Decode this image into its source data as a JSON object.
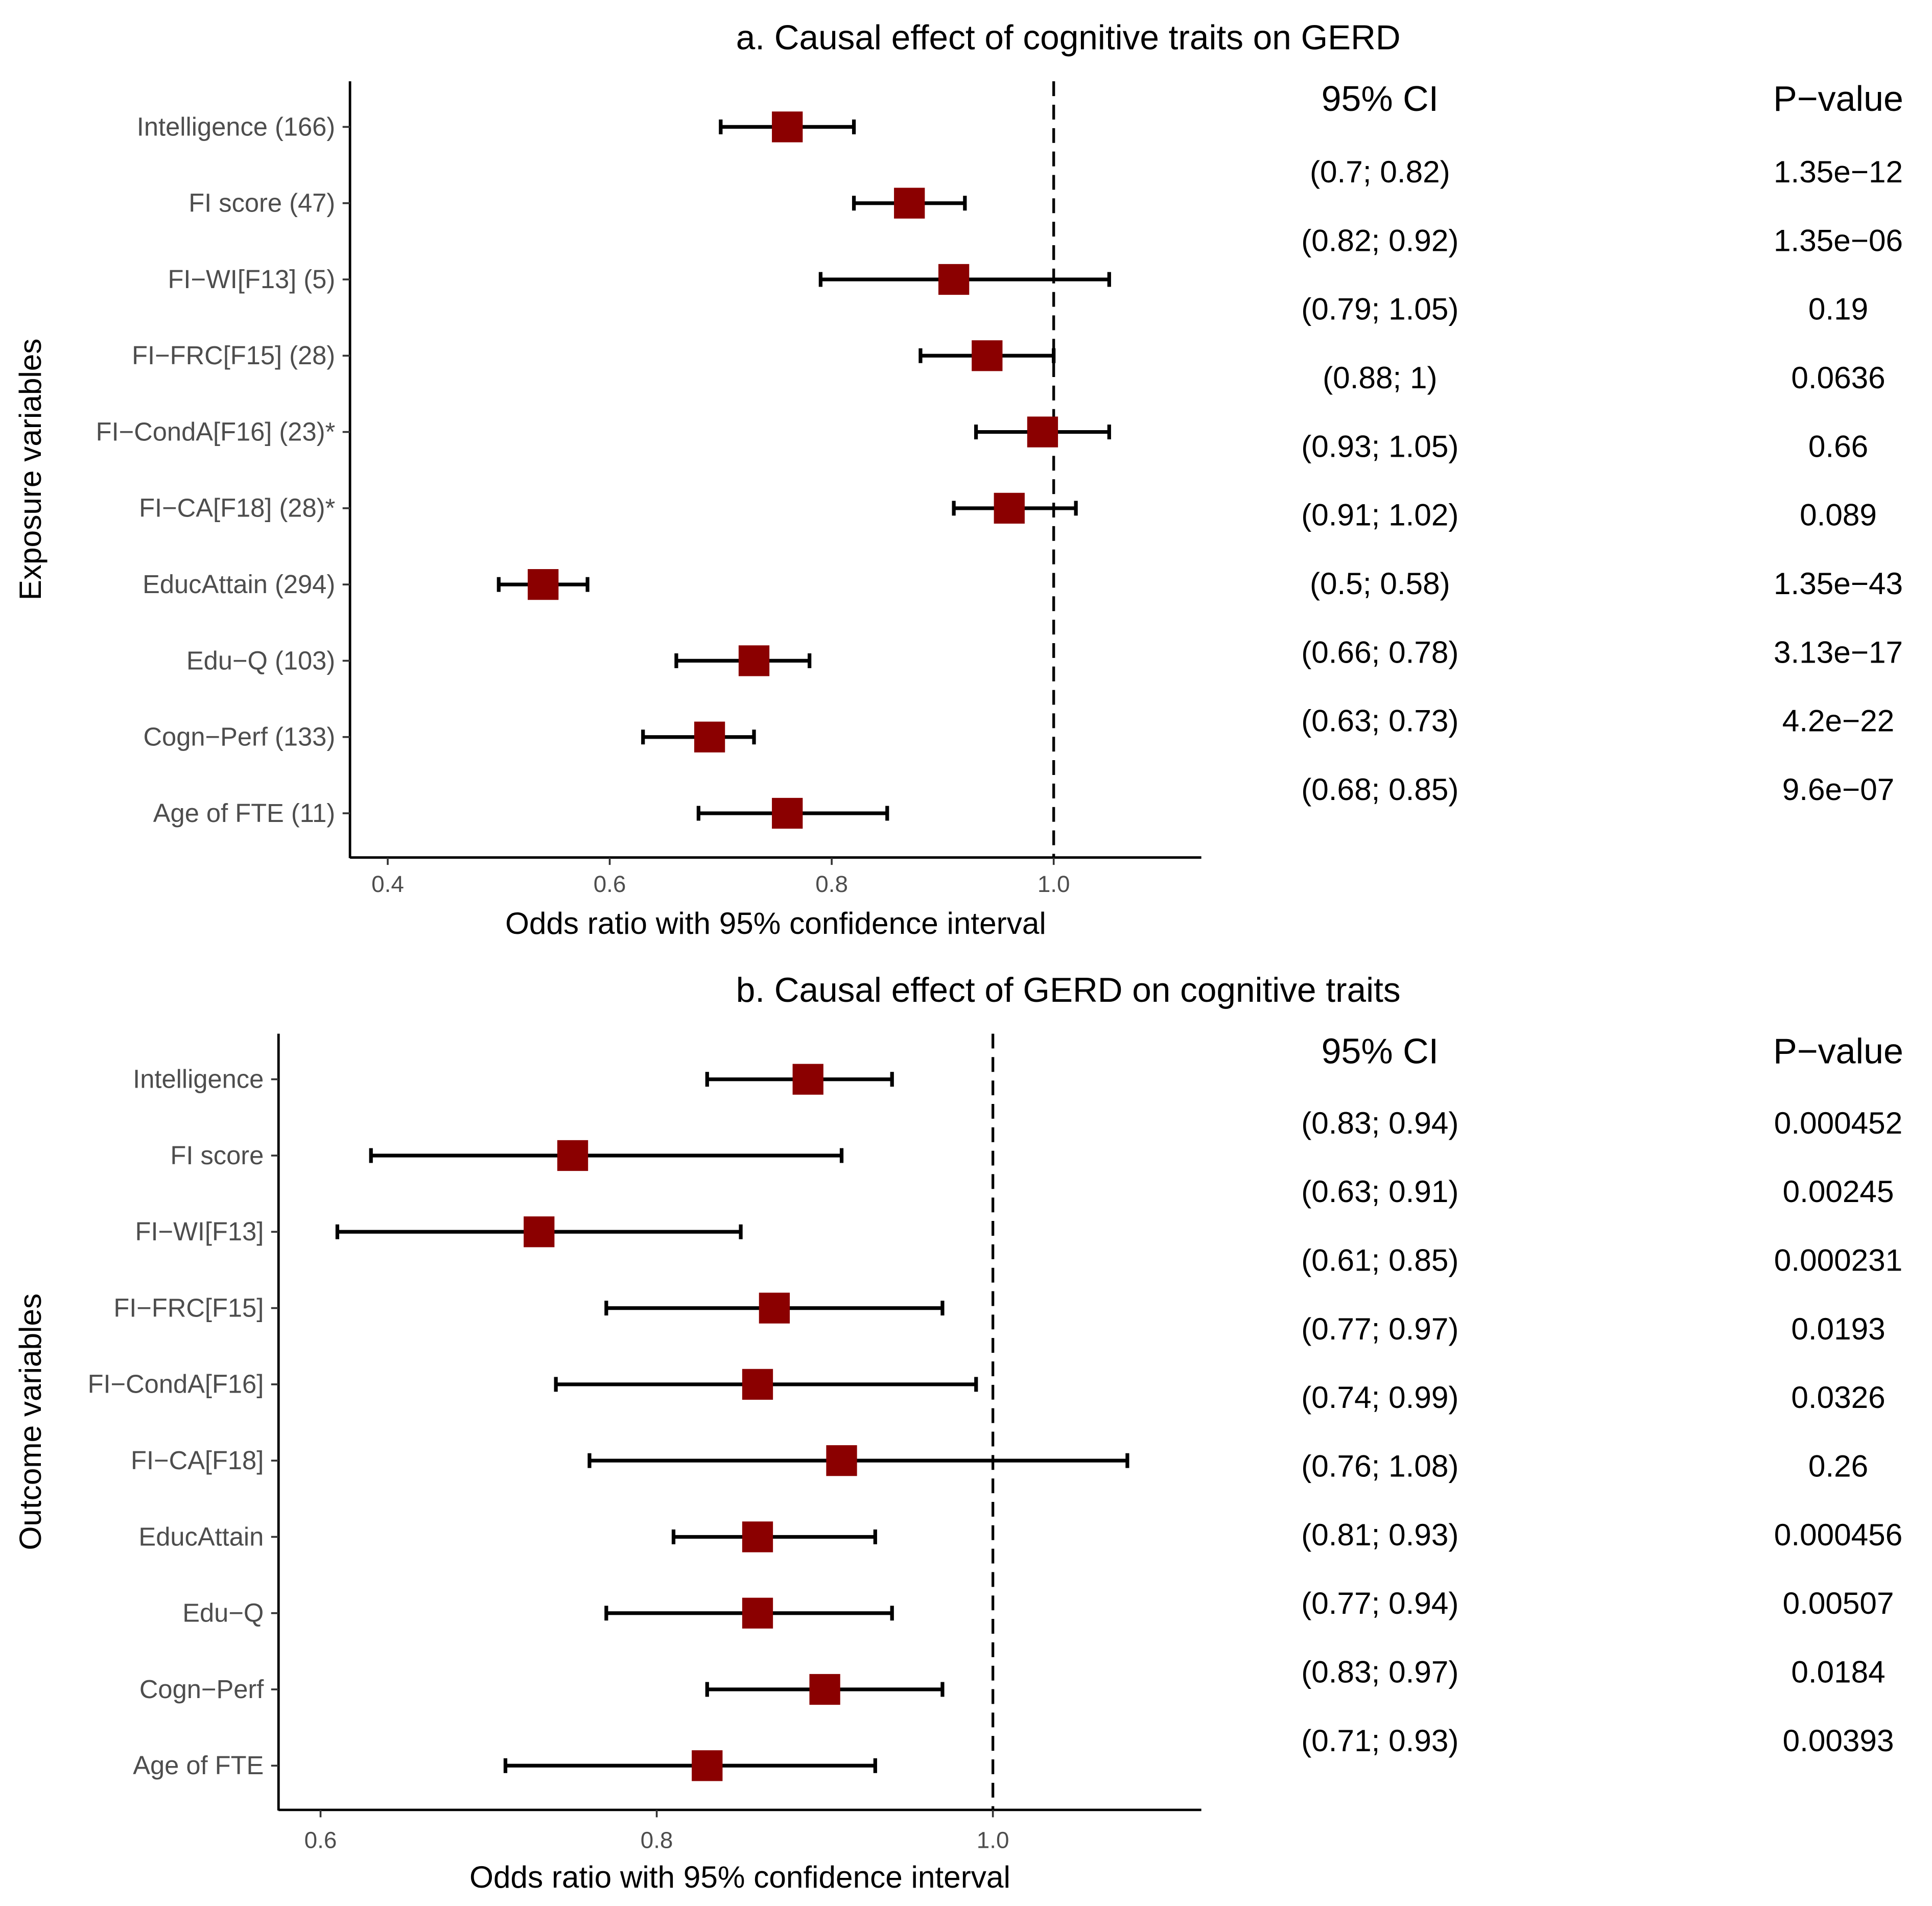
{
  "chart_data": [
    {
      "type": "forest",
      "title": "a. Causal effect of cognitive traits on GERD",
      "xlabel": "Odds ratio with 95% confidence interval",
      "ylabel": "Exposure variables",
      "xlim": [
        0.366,
        1.133
      ],
      "xticks": [
        0.4,
        0.6,
        0.8,
        1.0
      ],
      "xtick_labels": [
        "0.4",
        "0.6",
        "0.8",
        "1.0"
      ],
      "reference_line": 1.0,
      "table_headers": [
        "95% CI",
        "P−value"
      ],
      "rows": [
        {
          "label": "Intelligence (166)",
          "or": 0.76,
          "lo": 0.7,
          "hi": 0.82,
          "ci_text": "(0.7; 0.82)",
          "p": "1.35e−12"
        },
        {
          "label": "FI score (47)",
          "or": 0.87,
          "lo": 0.82,
          "hi": 0.92,
          "ci_text": "(0.82; 0.92)",
          "p": "1.35e−06"
        },
        {
          "label": "FI−WI[F13] (5)",
          "or": 0.91,
          "lo": 0.79,
          "hi": 1.05,
          "ci_text": "(0.79; 1.05)",
          "p": "0.19"
        },
        {
          "label": "FI−FRC[F15] (28)",
          "or": 0.94,
          "lo": 0.88,
          "hi": 1.0,
          "ci_text": "(0.88; 1)",
          "p": "0.0636"
        },
        {
          "label": "FI−CondA[F16] (23)*",
          "or": 0.99,
          "lo": 0.93,
          "hi": 1.05,
          "ci_text": "(0.93; 1.05)",
          "p": "0.66"
        },
        {
          "label": "FI−CA[F18] (28)*",
          "or": 0.96,
          "lo": 0.91,
          "hi": 1.02,
          "ci_text": "(0.91; 1.02)",
          "p": "0.089"
        },
        {
          "label": "EducAttain (294)",
          "or": 0.54,
          "lo": 0.5,
          "hi": 0.58,
          "ci_text": "(0.5; 0.58)",
          "p": "1.35e−43"
        },
        {
          "label": "Edu−Q (103)",
          "or": 0.73,
          "lo": 0.66,
          "hi": 0.78,
          "ci_text": "(0.66; 0.78)",
          "p": "3.13e−17"
        },
        {
          "label": "Cogn−Perf (133)",
          "or": 0.69,
          "lo": 0.63,
          "hi": 0.73,
          "ci_text": "(0.63; 0.73)",
          "p": "4.2e−22"
        },
        {
          "label": "Age of FTE (11)",
          "or": 0.76,
          "lo": 0.68,
          "hi": 0.85,
          "ci_text": "(0.68; 0.85)",
          "p": "9.6e−07"
        }
      ]
    },
    {
      "type": "forest",
      "title": "b. Causal effect of GERD on cognitive traits",
      "xlabel": "Odds ratio with 95% confidence interval",
      "ylabel": "Outcome variables",
      "xlim": [
        0.575,
        1.124
      ],
      "xticks": [
        0.6,
        0.8,
        1.0
      ],
      "xtick_labels": [
        "0.6",
        "0.8",
        "1.0"
      ],
      "reference_line": 1.0,
      "table_headers": [
        "95% CI",
        "P−value"
      ],
      "rows": [
        {
          "label": "Intelligence",
          "or": 0.89,
          "lo": 0.83,
          "hi": 0.94,
          "ci_text": "(0.83; 0.94)",
          "p": "0.000452"
        },
        {
          "label": "FI score",
          "or": 0.75,
          "lo": 0.63,
          "hi": 0.91,
          "ci_text": "(0.63; 0.91)",
          "p": "0.00245"
        },
        {
          "label": "FI−WI[F13]",
          "or": 0.73,
          "lo": 0.61,
          "hi": 0.85,
          "ci_text": "(0.61; 0.85)",
          "p": "0.000231"
        },
        {
          "label": "FI−FRC[F15]",
          "or": 0.87,
          "lo": 0.77,
          "hi": 0.97,
          "ci_text": "(0.77; 0.97)",
          "p": "0.0193"
        },
        {
          "label": "FI−CondA[F16]",
          "or": 0.86,
          "lo": 0.74,
          "hi": 0.99,
          "ci_text": "(0.74; 0.99)",
          "p": "0.0326"
        },
        {
          "label": "FI−CA[F18]",
          "or": 0.91,
          "lo": 0.76,
          "hi": 1.08,
          "ci_text": "(0.76; 1.08)",
          "p": "0.26"
        },
        {
          "label": "EducAttain",
          "or": 0.86,
          "lo": 0.81,
          "hi": 0.93,
          "ci_text": "(0.81; 0.93)",
          "p": "0.000456"
        },
        {
          "label": "Edu−Q",
          "or": 0.86,
          "lo": 0.77,
          "hi": 0.94,
          "ci_text": "(0.77; 0.94)",
          "p": "0.00507"
        },
        {
          "label": "Cogn−Perf",
          "or": 0.9,
          "lo": 0.83,
          "hi": 0.97,
          "ci_text": "(0.83; 0.97)",
          "p": "0.0184"
        },
        {
          "label": "Age of FTE",
          "or": 0.83,
          "lo": 0.71,
          "hi": 0.93,
          "ci_text": "(0.71; 0.93)",
          "p": "0.00393"
        }
      ]
    }
  ],
  "colors": {
    "point": "#8b0000",
    "line": "#000000"
  }
}
